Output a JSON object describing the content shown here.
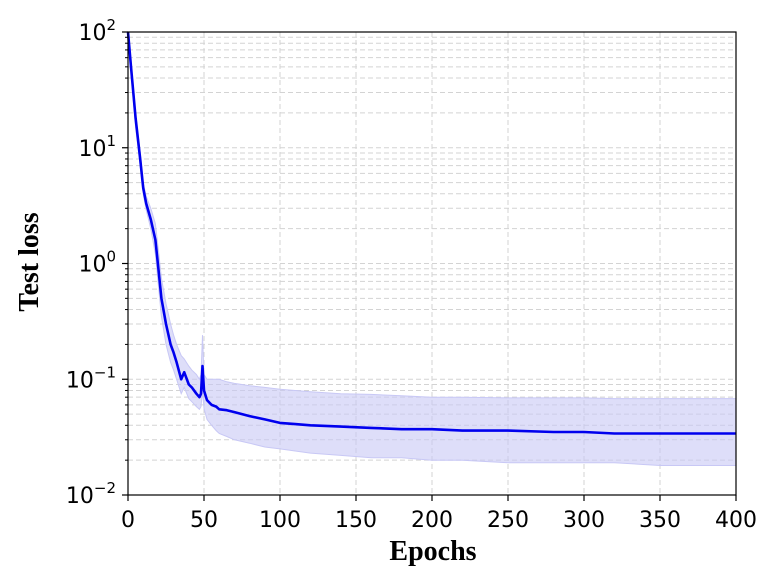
{
  "chart_data": {
    "type": "line",
    "xlabel": "Epochs",
    "ylabel": "Test loss",
    "yscale": "log",
    "xlim": [
      0,
      400
    ],
    "ylim": [
      0.01,
      100
    ],
    "grid": true,
    "grid_style": "dashed",
    "x_ticks": [
      "0",
      "50",
      "100",
      "150",
      "200",
      "250",
      "300",
      "350",
      "400"
    ],
    "y_ticks": [
      {
        "base": "10",
        "exp": "2"
      },
      {
        "base": "10",
        "exp": "1"
      },
      {
        "base": "10",
        "exp": "0"
      },
      {
        "base": "10",
        "exp": "−1"
      },
      {
        "base": "10",
        "exp": "−2"
      }
    ],
    "colors": {
      "line": "#0000ee",
      "band": "#c8c8f5"
    },
    "series": [
      {
        "x": [
          0,
          2,
          5,
          8,
          10,
          12,
          15,
          18,
          20,
          22,
          25,
          28,
          30,
          32,
          35,
          37,
          40,
          42,
          45,
          47,
          48,
          49,
          50,
          52,
          55,
          58,
          60,
          65,
          70,
          75,
          80,
          90,
          100,
          110,
          120,
          140,
          160,
          180,
          200,
          220,
          250,
          280,
          300,
          320,
          350,
          380,
          400
        ],
        "y": [
          100,
          50,
          18,
          8,
          4.5,
          3.3,
          2.4,
          1.6,
          0.9,
          0.5,
          0.3,
          0.2,
          0.17,
          0.14,
          0.1,
          0.115,
          0.09,
          0.085,
          0.075,
          0.07,
          0.075,
          0.13,
          0.08,
          0.066,
          0.06,
          0.058,
          0.055,
          0.054,
          0.052,
          0.05,
          0.048,
          0.045,
          0.042,
          0.041,
          0.04,
          0.039,
          0.038,
          0.037,
          0.037,
          0.036,
          0.036,
          0.035,
          0.035,
          0.034,
          0.034,
          0.034,
          0.034
        ],
        "band_upper": [
          100,
          55,
          20,
          9,
          5,
          3.8,
          3,
          2.2,
          1.3,
          0.75,
          0.45,
          0.3,
          0.24,
          0.2,
          0.16,
          0.15,
          0.13,
          0.12,
          0.11,
          0.1,
          0.11,
          0.24,
          0.11,
          0.1,
          0.1,
          0.1,
          0.1,
          0.095,
          0.092,
          0.09,
          0.088,
          0.085,
          0.082,
          0.08,
          0.078,
          0.075,
          0.074,
          0.072,
          0.07,
          0.07,
          0.069,
          0.069,
          0.069,
          0.068,
          0.068,
          0.068,
          0.068
        ],
        "band_lower": [
          90,
          45,
          15,
          7,
          4,
          2.9,
          2,
          1.2,
          0.65,
          0.35,
          0.2,
          0.14,
          0.12,
          0.1,
          0.075,
          0.085,
          0.068,
          0.064,
          0.058,
          0.055,
          0.058,
          0.08,
          0.056,
          0.045,
          0.04,
          0.036,
          0.034,
          0.032,
          0.03,
          0.029,
          0.028,
          0.026,
          0.025,
          0.024,
          0.023,
          0.022,
          0.021,
          0.021,
          0.02,
          0.02,
          0.019,
          0.019,
          0.019,
          0.019,
          0.018,
          0.018,
          0.018
        ]
      }
    ]
  }
}
